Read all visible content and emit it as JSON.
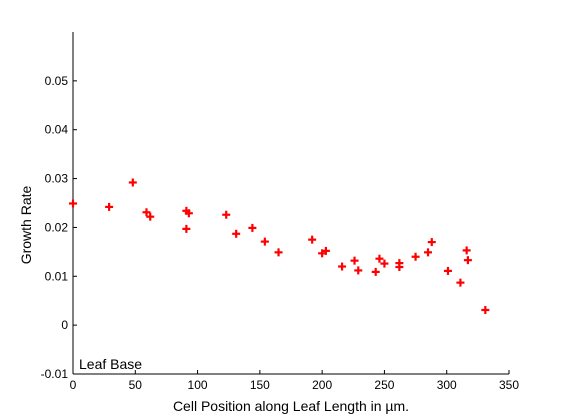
{
  "chart_data": {
    "type": "scatter",
    "title": "",
    "xlabel": "Cell Position along Leaf Length in µm.",
    "ylabel": "Growth Rate",
    "xlim": [
      0,
      350
    ],
    "ylim": [
      -0.01,
      0.06
    ],
    "xticks": [
      0,
      50,
      100,
      150,
      200,
      250,
      300,
      350
    ],
    "yticks": [
      -0.01,
      0,
      0.01,
      0.02,
      0.03,
      0.04,
      0.05
    ],
    "ytick_labels": [
      "-0.01",
      "0",
      "0.01",
      "0.02",
      "0.03",
      "0.04",
      "0.05"
    ],
    "grid": false,
    "marker": "+",
    "marker_color": "#ff0000",
    "annotation": "Leaf Base",
    "series": [
      {
        "points": [
          [
            0,
            0.0249
          ],
          [
            29,
            0.0242
          ],
          [
            48,
            0.0292
          ],
          [
            59,
            0.0231
          ],
          [
            62,
            0.0222
          ],
          [
            91,
            0.0234
          ],
          [
            93,
            0.0229
          ],
          [
            91,
            0.0197
          ],
          [
            123,
            0.0226
          ],
          [
            131,
            0.0187
          ],
          [
            144,
            0.0199
          ],
          [
            154,
            0.0171
          ],
          [
            165,
            0.0149
          ],
          [
            192,
            0.0175
          ],
          [
            200,
            0.0147
          ],
          [
            203,
            0.0152
          ],
          [
            216,
            0.012
          ],
          [
            226,
            0.0132
          ],
          [
            229,
            0.0112
          ],
          [
            243,
            0.0109
          ],
          [
            246,
            0.0136
          ],
          [
            250,
            0.0126
          ],
          [
            262,
            0.0127
          ],
          [
            262,
            0.0119
          ],
          [
            275,
            0.014
          ],
          [
            285,
            0.0149
          ],
          [
            288,
            0.017
          ],
          [
            301,
            0.0111
          ],
          [
            311,
            0.0087
          ],
          [
            316,
            0.0153
          ],
          [
            317,
            0.0133
          ],
          [
            331,
            0.0031
          ]
        ]
      }
    ]
  }
}
